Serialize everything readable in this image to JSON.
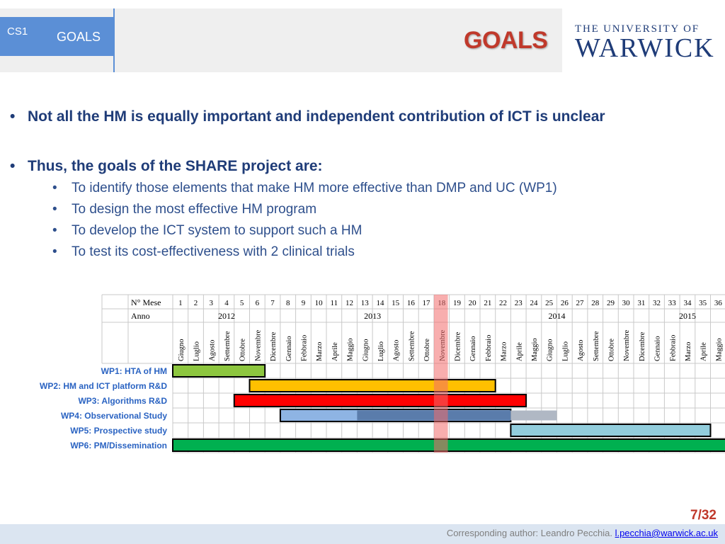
{
  "header": {
    "tab_code": "CS1",
    "tab_label": "GOALS",
    "title": "GOALS",
    "logo_top": "THE UNIVERSITY OF",
    "logo_main": "WARWICK"
  },
  "bullets": [
    {
      "text": "Not all the HM is equally important and independent contribution of ICT is unclear",
      "sub": []
    },
    {
      "text": "Thus, the goals of the SHARE project are:",
      "sub": [
        "To identify those elements that make HM more effective than DMP and UC (WP1)",
        "To design the most effective HM program",
        "To develop the ICT system to support such a HM",
        "To test its cost-effectiveness with 2 clinical trials"
      ]
    }
  ],
  "gantt": {
    "row_labels": {
      "month_number": "N° Mese",
      "year": "Anno"
    },
    "month_numbers": [
      1,
      2,
      3,
      4,
      5,
      6,
      7,
      8,
      9,
      10,
      11,
      12,
      13,
      14,
      15,
      16,
      17,
      18,
      19,
      20,
      21,
      22,
      23,
      24,
      25,
      26,
      27,
      28,
      29,
      30,
      31,
      32,
      33,
      34,
      35,
      36
    ],
    "years": [
      {
        "label": "2012",
        "start": 1,
        "end": 7
      },
      {
        "label": "2013",
        "start": 8,
        "end": 19
      },
      {
        "label": "2014",
        "start": 20,
        "end": 31
      },
      {
        "label": "2015",
        "start": 32,
        "end": 36
      }
    ],
    "month_names": [
      "Giugno",
      "Luglio",
      "Agosto",
      "Settembre",
      "Ottobre",
      "Novembre",
      "Dicembre",
      "Gennaio",
      "Febbraio",
      "Marzo",
      "Aprile",
      "Maggio",
      "Giugno",
      "Luglio",
      "Agosto",
      "Settembre",
      "Ottobre",
      "Novembre",
      "Dicembre",
      "Gennaio",
      "Febbraio",
      "Marzo",
      "Aprile",
      "Maggio",
      "Giugno",
      "Luglio",
      "Agosto",
      "Settembre",
      "Ottobre",
      "Novembre",
      "Dicembre",
      "Gennaio",
      "Febbraio",
      "Marzo",
      "Aprile",
      "Maggio"
    ],
    "current_month": 18,
    "highlight_color": "#f26b6b",
    "tasks": [
      {
        "label": "WP1: HTA of HM",
        "start": 1,
        "end": 6,
        "color": "#8dc63f"
      },
      {
        "label": "WP2: HM and ICT platform R&D",
        "start": 6,
        "end": 21,
        "color": "#ffc000"
      },
      {
        "label": "WP3: Algorithms R&D",
        "start": 5,
        "end": 23,
        "color": "#ff0000"
      },
      {
        "label": "WP4: Observational Study",
        "start": 8,
        "end": 22,
        "color": "#8eb4e3",
        "overlays": [
          {
            "start": 13,
            "end": 22,
            "color": "#5a7cab"
          },
          {
            "start": 23,
            "end": 25,
            "color": "#b0b8c4"
          }
        ]
      },
      {
        "label": "WP5: Prospective study",
        "start": 23,
        "end": 35,
        "color": "#92cddc"
      },
      {
        "label": "WP6: PM/Dissemination",
        "start": 1,
        "end": 36,
        "color": "#00b050"
      }
    ]
  },
  "footer": {
    "page": "7/32",
    "author_text": "Corresponding author: Leandro Pecchia. ",
    "email": "l.pecchia@warwick.ac.uk"
  },
  "colors": {
    "accent_blue": "#5b8fd6",
    "title_red": "#c0392b",
    "text_navy": "#1f3c78",
    "label_blue": "#2a63c2"
  }
}
